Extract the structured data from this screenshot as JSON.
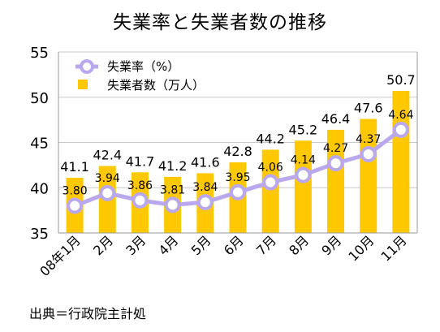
{
  "chart_data": {
    "type": "bar",
    "title": "失業率と失業者数の推移",
    "source": "出典＝行政院主計処",
    "categories": [
      "08年1月",
      "2月",
      "3月",
      "4月",
      "5月",
      "6月",
      "7月",
      "8月",
      "9月",
      "10月",
      "11月"
    ],
    "yticks": [
      "55",
      "50",
      "45",
      "40",
      "35"
    ],
    "ylim": [
      35,
      55
    ],
    "grid": true,
    "legend_position": "top-left",
    "series": [
      {
        "name": "失業者数（万人）",
        "type": "bar",
        "color": "#FFC800",
        "values": [
          41.1,
          42.4,
          41.7,
          41.2,
          41.6,
          42.8,
          44.2,
          45.2,
          46.4,
          47.6,
          50.7
        ],
        "labels": [
          "41.1",
          "42.4",
          "41.7",
          "41.2",
          "41.6",
          "42.8",
          "44.2",
          "45.2",
          "46.4",
          "47.6",
          "50.7"
        ]
      },
      {
        "name": "失業率（%）",
        "type": "line",
        "color": "#B9A8EE",
        "values": [
          3.8,
          3.94,
          3.86,
          3.81,
          3.84,
          3.95,
          4.06,
          4.14,
          4.27,
          4.37,
          4.64
        ],
        "labels": [
          "3.80",
          "3.94",
          "3.86",
          "3.81",
          "3.84",
          "3.95",
          "4.06",
          "4.14",
          "4.27",
          "4.37",
          "4.64"
        ]
      }
    ]
  }
}
